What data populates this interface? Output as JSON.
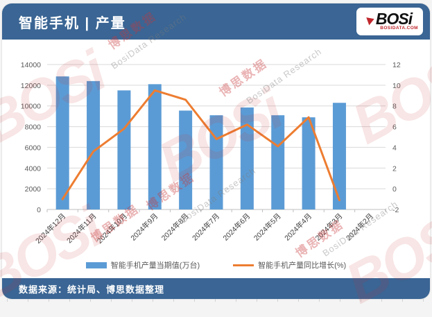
{
  "header": {
    "title": "智能手机 | 产量",
    "logo_text": "BOSi",
    "logo_sub": "BOSIDATA.COM"
  },
  "footer": {
    "source": "数据来源：统计局、博思数据整理"
  },
  "watermark": {
    "brand": "BOSi",
    "cn": "博思数据",
    "en": "BosiData Research"
  },
  "colors": {
    "header_bar": "#3a6594",
    "footer_bar": "#3a6594",
    "bar_series": "#5b9bd5",
    "line_series": "#ed7d31",
    "grid": "#d9d9d9",
    "axis": "#bfbfbf",
    "tick_text": "#595959",
    "logo_red": "#c0272d"
  },
  "chart_data": {
    "type": "bar",
    "title": "智能手机 | 产量",
    "categories": [
      "2024年12月",
      "2024年11月",
      "2024年10月",
      "2024年9月",
      "2024年8月",
      "2024年7月",
      "2024年6月",
      "2024年5月",
      "2024年4月",
      "2024年3月",
      "2024年2月"
    ],
    "series": [
      {
        "name": "智能手机产量当期值(万台)",
        "type": "bar",
        "axis": "left",
        "color": "#5b9bd5",
        "values": [
          12850,
          12400,
          11500,
          12100,
          9550,
          9100,
          9850,
          9100,
          8900,
          10300,
          null
        ]
      },
      {
        "name": "智能手机产量同比增长(%)",
        "type": "line",
        "axis": "right",
        "color": "#ed7d31",
        "values": [
          -1.0,
          3.6,
          5.8,
          9.5,
          8.6,
          4.8,
          6.2,
          4.1,
          6.9,
          -1.1,
          null
        ]
      }
    ],
    "left_axis": {
      "min": 0,
      "max": 14000,
      "step": 2000
    },
    "right_axis": {
      "min": -2,
      "max": 12,
      "step": 2
    },
    "grid": true,
    "legend_position": "bottom"
  }
}
